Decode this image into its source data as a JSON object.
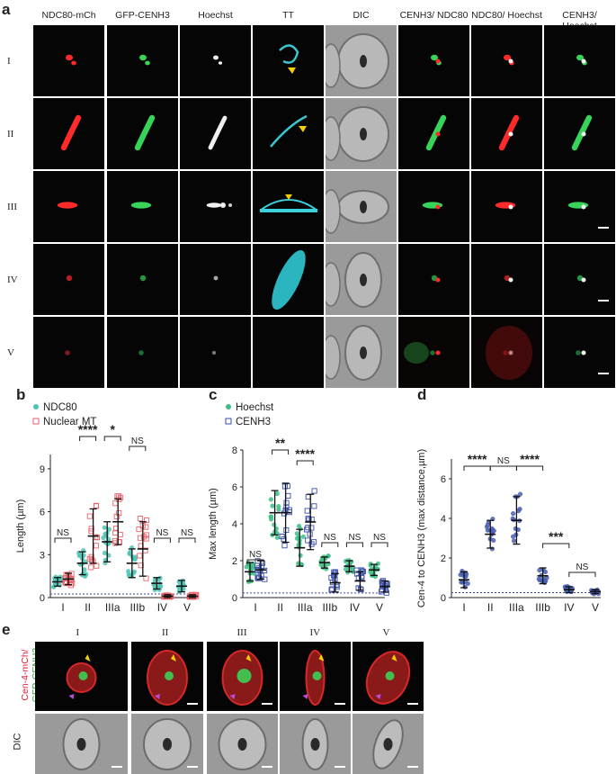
{
  "panel_a": {
    "letter": "a",
    "columns": [
      "NDC80-mCh",
      "GFP-CENH3",
      "Hoechst",
      "TT",
      "DIC",
      "CENH3/ NDC80",
      "NDC80/ Hoechst",
      "CENH3/ Hoechst"
    ],
    "rows": [
      "I",
      "II",
      "III",
      "IV",
      "V"
    ]
  },
  "panel_b": {
    "letter": "b",
    "legend": [
      "NDC80",
      "Nuclear MT"
    ],
    "ylabel": "Length (µm)",
    "categories": [
      "I",
      "II",
      "IIIa",
      "IIIb",
      "IV",
      "V"
    ],
    "yticks": [
      "0",
      "3",
      "6",
      "9"
    ],
    "sig": [
      "NS",
      "****",
      "*",
      "NS",
      "NS",
      "NS"
    ]
  },
  "panel_c": {
    "letter": "c",
    "legend": [
      "Hoechst",
      "CENH3"
    ],
    "ylabel": "Max length (µm)",
    "categories": [
      "I",
      "II",
      "IIIa",
      "IIIb",
      "IV",
      "V"
    ],
    "yticks": [
      "0",
      "2",
      "4",
      "6",
      "8"
    ],
    "sig": [
      "NS",
      "**",
      "****",
      "NS",
      "NS",
      "NS"
    ]
  },
  "panel_d": {
    "letter": "d",
    "ylabel": "Cen-4 to CENH3 (max distance,µm)",
    "categories": [
      "I",
      "II",
      "IIIa",
      "IIIb",
      "IV",
      "V"
    ],
    "yticks": [
      "0",
      "2",
      "4",
      "6"
    ],
    "sig": [
      "****",
      "NS",
      "****",
      "***",
      "NS"
    ]
  },
  "panel_e": {
    "letter": "e",
    "columns": [
      "I",
      "II",
      "III",
      "IV",
      "V"
    ],
    "row_label_red": "Cen-4-mCh/",
    "row_label_green": "GFP-CENH3",
    "row_label_dic": "DIC"
  },
  "colors": {
    "ndc80": "#4fc4b3",
    "nuclear_mt": "#e8636b",
    "hoechst": "#3ebd86",
    "cenh3": "#3a4ea8",
    "cen4": "#4a5fb0"
  },
  "chart_data": [
    {
      "type": "scatter",
      "title": "",
      "ylabel": "Length (µm)",
      "categories": [
        "I",
        "II",
        "IIIa",
        "IIIb",
        "IV",
        "V"
      ],
      "ylim": [
        0,
        10
      ],
      "series": [
        {
          "name": "NDC80",
          "mean": [
            1.1,
            2.4,
            3.9,
            2.4,
            1.0,
            0.8
          ],
          "sd": [
            0.3,
            0.8,
            1.4,
            1.0,
            0.4,
            0.4
          ]
        },
        {
          "name": "Nuclear MT",
          "mean": [
            1.3,
            4.3,
            5.3,
            3.4,
            0.1,
            0.1
          ],
          "sd": [
            0.4,
            1.9,
            1.6,
            1.9,
            0.1,
            0.1
          ]
        }
      ]
    },
    {
      "type": "scatter",
      "title": "",
      "ylabel": "Max length (µm)",
      "categories": [
        "I",
        "II",
        "IIIa",
        "IIIb",
        "IV",
        "V"
      ],
      "ylim": [
        0,
        8
      ],
      "series": [
        {
          "name": "Hoechst",
          "mean": [
            1.4,
            4.6,
            2.7,
            1.9,
            1.7,
            1.5
          ],
          "sd": [
            0.5,
            1.2,
            1.0,
            0.3,
            0.3,
            0.3
          ]
        },
        {
          "name": "CENH3",
          "mean": [
            1.5,
            4.6,
            4.1,
            0.8,
            0.9,
            0.6
          ],
          "sd": [
            0.5,
            1.6,
            1.5,
            0.5,
            0.5,
            0.3
          ]
        }
      ]
    },
    {
      "type": "scatter",
      "title": "",
      "ylabel": "Cen-4 to CENH3 (max distance,µm)",
      "categories": [
        "I",
        "II",
        "IIIa",
        "IIIb",
        "IV",
        "V"
      ],
      "ylim": [
        0,
        7
      ],
      "series": [
        {
          "name": "",
          "mean": [
            0.9,
            3.2,
            3.9,
            1.1,
            0.4,
            0.3
          ],
          "sd": [
            0.4,
            0.7,
            1.2,
            0.4,
            0.15,
            0.1
          ]
        }
      ]
    }
  ]
}
